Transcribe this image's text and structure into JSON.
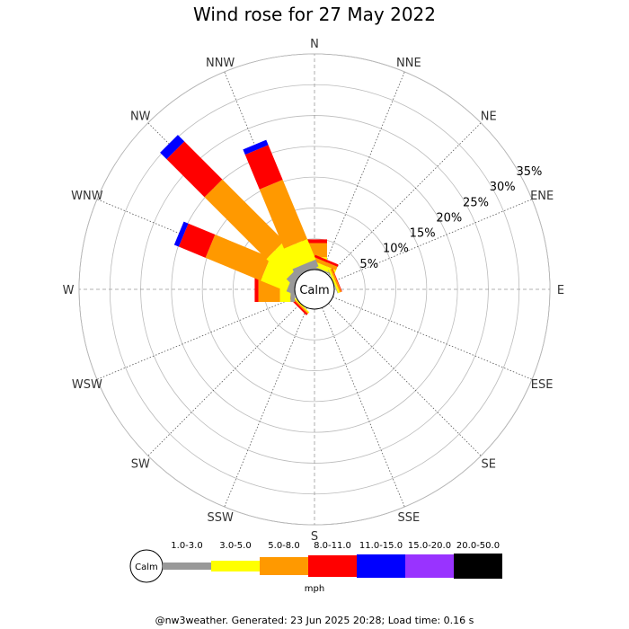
{
  "title": "Wind rose for 27 May 2022",
  "footer": "@nw3weather. Generated: 23 Jun 2025 20:28; Load time: 0.16 s",
  "calm_label": "Calm",
  "units": "mph",
  "chart_data": {
    "type": "wind-rose",
    "title": "Wind rose for 27 May 2022",
    "directions": [
      "N",
      "NNE",
      "NE",
      "ENE",
      "E",
      "ESE",
      "SE",
      "SSE",
      "S",
      "SSW",
      "SW",
      "WSW",
      "W",
      "WNW",
      "NW",
      "NNW"
    ],
    "ring_labels": [
      "5%",
      "10%",
      "15%",
      "20%",
      "25%",
      "30%",
      "35%"
    ],
    "ring_values": [
      5,
      10,
      15,
      20,
      25,
      30,
      35
    ],
    "max_percent": 35,
    "speed_bins": [
      {
        "label": "1.0-3.0",
        "color": "#999999"
      },
      {
        "label": "3.0-5.0",
        "color": "#ffff00"
      },
      {
        "label": "5.0-8.0",
        "color": "#ff9900"
      },
      {
        "label": "8.0-11.0",
        "color": "#ff0000"
      },
      {
        "label": "11.0-15.0",
        "color": "#0000ff"
      },
      {
        "label": "15.0-20.0",
        "color": "#9933ff"
      },
      {
        "label": "20.0-50.0",
        "color": "#000000"
      }
    ],
    "series": [
      {
        "direction": "N",
        "values": [
          1.3,
          0.7,
          2.3,
          0.6,
          0,
          0,
          0
        ]
      },
      {
        "direction": "NNE",
        "values": [
          0.2,
          0.8,
          0.6,
          0.4,
          0,
          0,
          0
        ]
      },
      {
        "direction": "NE",
        "values": [
          0,
          0,
          0,
          0,
          0,
          0,
          0
        ]
      },
      {
        "direction": "ENE",
        "values": [
          0.1,
          0.3,
          0.3,
          0.1,
          0,
          0,
          0
        ]
      },
      {
        "direction": "E",
        "values": [
          0,
          0,
          0,
          0,
          0,
          0,
          0
        ]
      },
      {
        "direction": "ESE",
        "values": [
          0,
          0,
          0,
          0,
          0,
          0,
          0
        ]
      },
      {
        "direction": "SE",
        "values": [
          0,
          0,
          0,
          0,
          0,
          0,
          0
        ]
      },
      {
        "direction": "SSE",
        "values": [
          0,
          0,
          0,
          0,
          0,
          0,
          0
        ]
      },
      {
        "direction": "S",
        "values": [
          0,
          0,
          0,
          0,
          0,
          0,
          0
        ]
      },
      {
        "direction": "SSW",
        "values": [
          0,
          0,
          0,
          0,
          0,
          0,
          0
        ]
      },
      {
        "direction": "SW",
        "values": [
          0,
          0.2,
          0.2,
          0.3,
          0,
          0,
          0
        ]
      },
      {
        "direction": "WSW",
        "values": [
          0,
          0,
          0,
          0,
          0,
          0,
          0
        ]
      },
      {
        "direction": "W",
        "values": [
          0.7,
          1.7,
          3.5,
          0.6,
          0,
          0,
          0
        ]
      },
      {
        "direction": "WNW",
        "values": [
          0.9,
          4.5,
          9.7,
          4.7,
          0.8,
          0,
          0
        ]
      },
      {
        "direction": "NW",
        "values": [
          1.2,
          4.6,
          14.2,
          8.7,
          1.5,
          0,
          0
        ]
      },
      {
        "direction": "NNW",
        "values": [
          1.2,
          3.6,
          10.4,
          6.1,
          0.9,
          0,
          0
        ]
      }
    ]
  }
}
